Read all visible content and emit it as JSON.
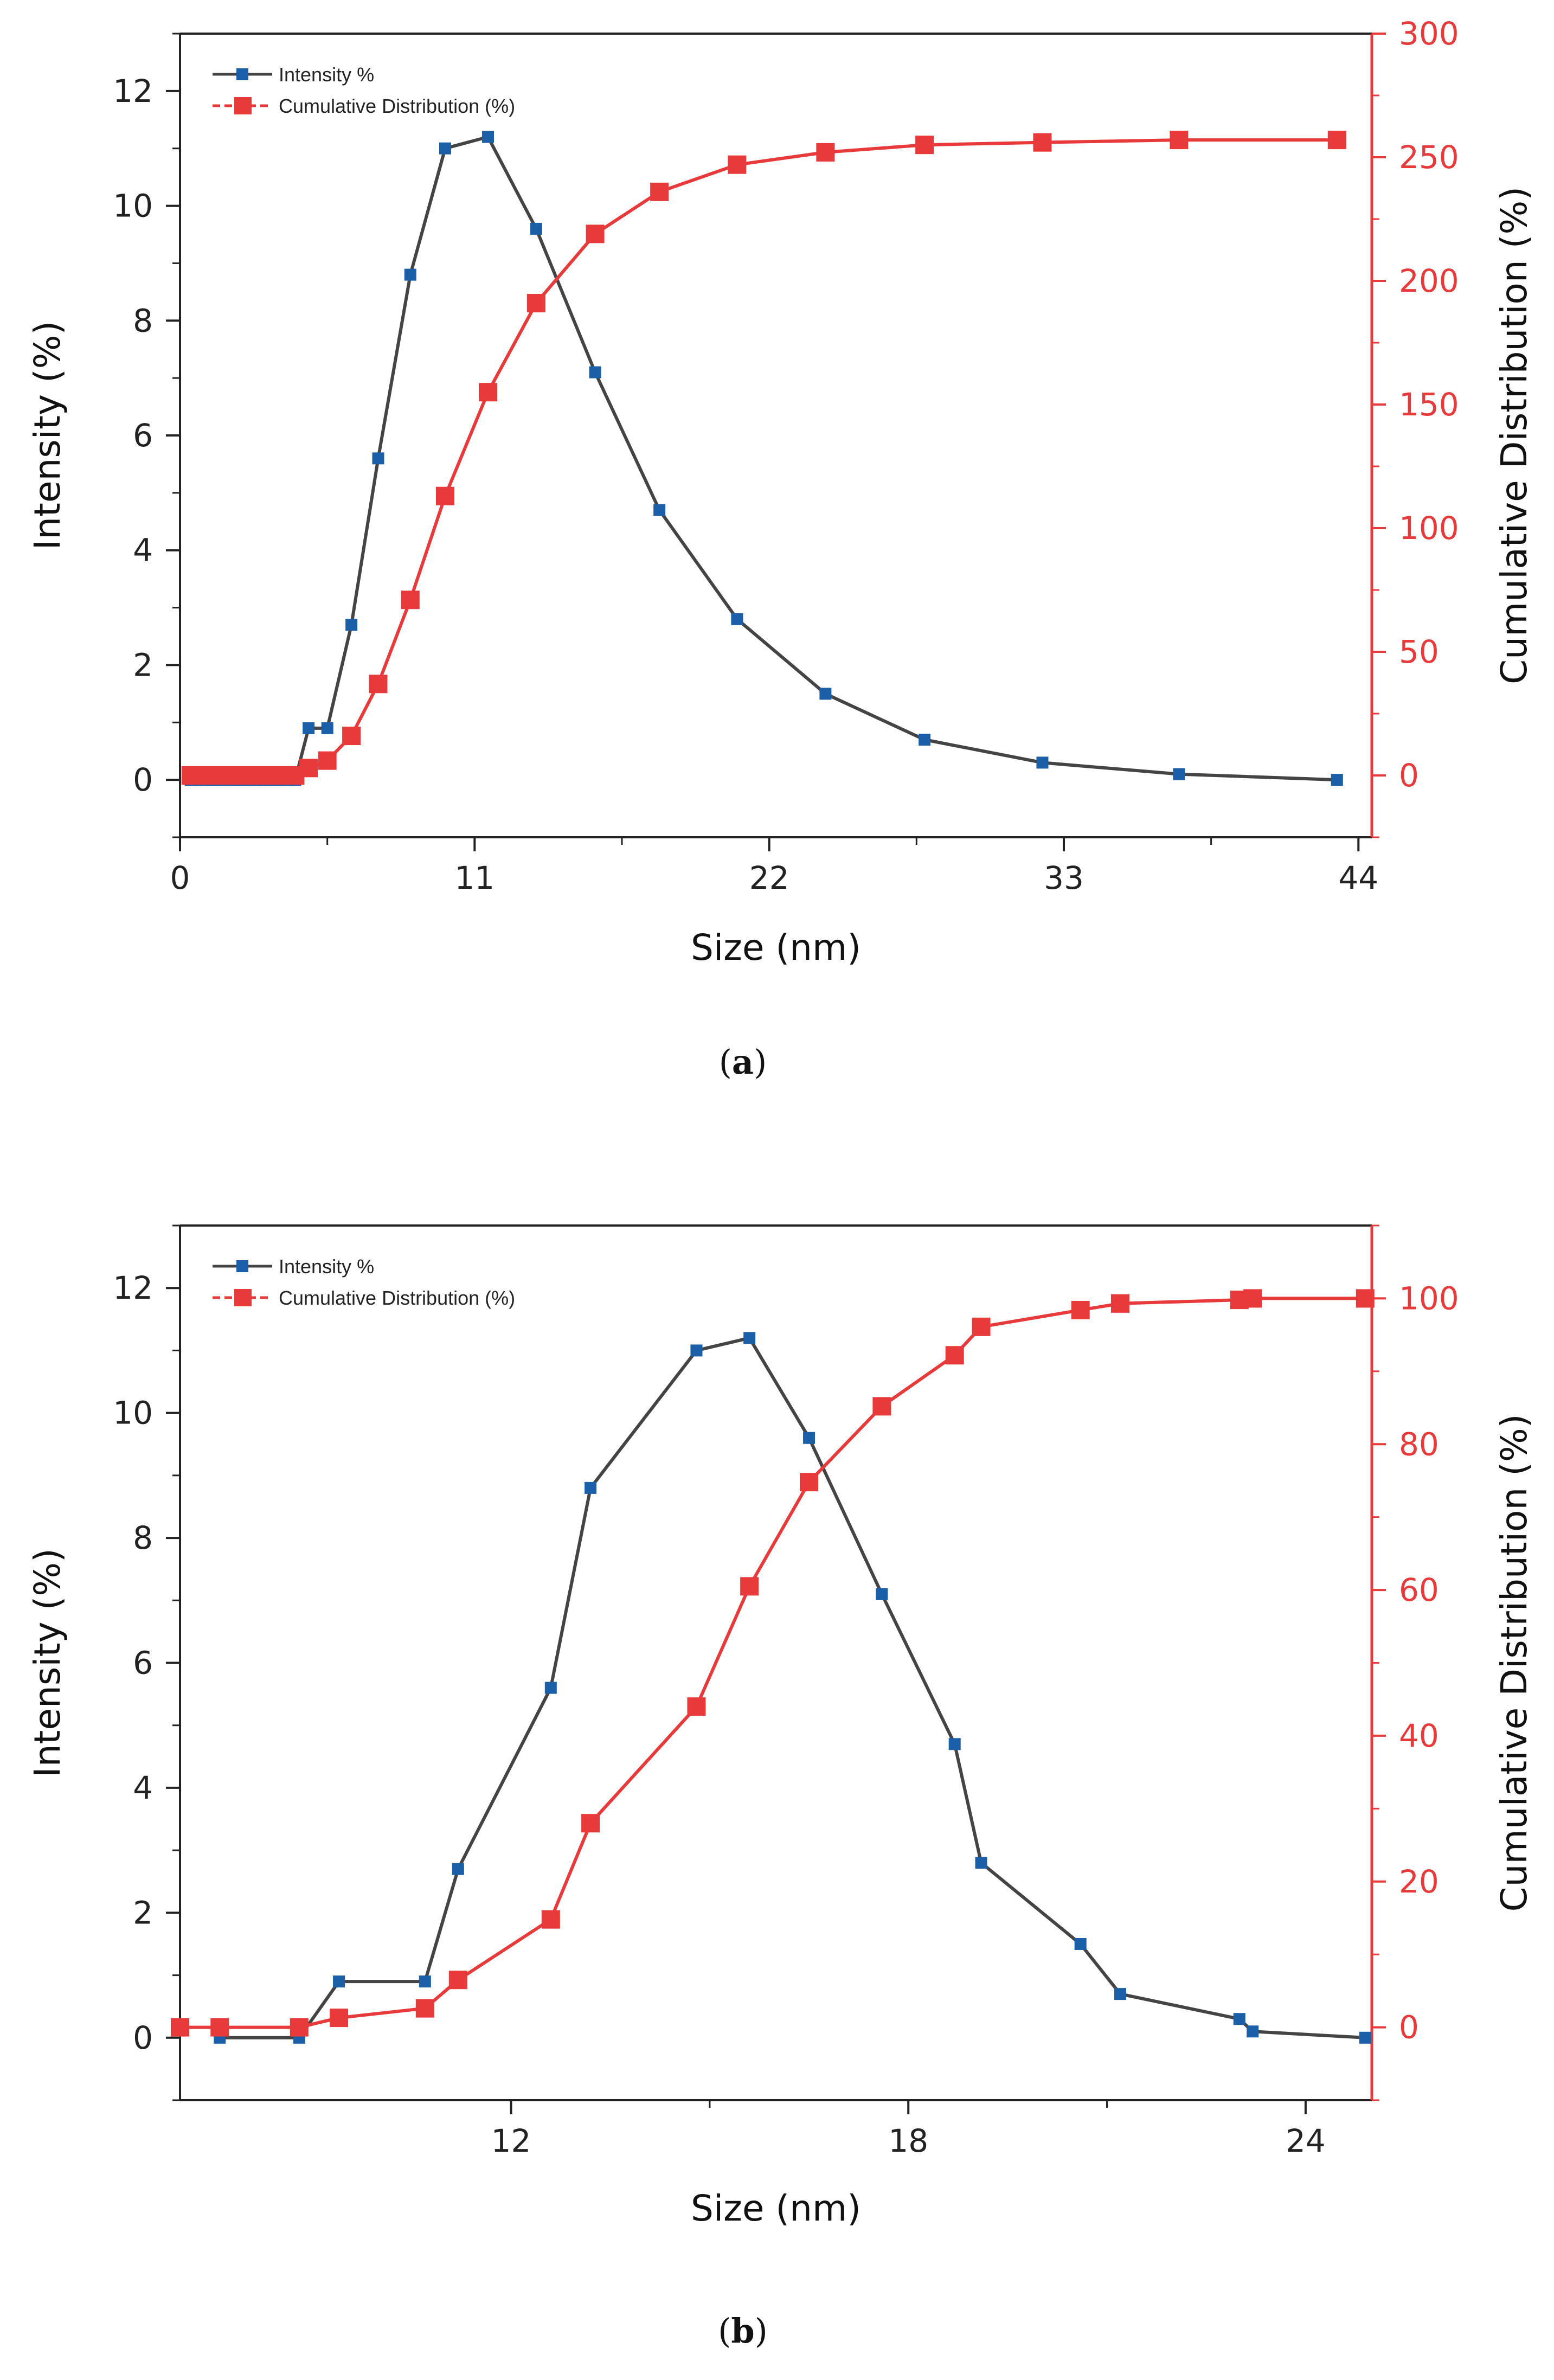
{
  "colors": {
    "intensity": "#444444",
    "intensity_marker": "#1a5fa8",
    "cumulative": "#e83a3a",
    "axis": "#222222"
  },
  "chart_data": [
    {
      "type": "line",
      "caption": "(a)",
      "caption_letter": "a",
      "xlabel": "Size (nm)",
      "ylabel": "Intensity (%)",
      "y2label": "Cumulative Distribution (%)",
      "xlim": [
        0,
        44.5
      ],
      "ylim": [
        -1,
        13
      ],
      "y2lim": [
        -25,
        300
      ],
      "xticks": [
        0,
        11,
        22,
        33,
        44
      ],
      "xtick_labels": [
        "0",
        "11",
        "22",
        "33",
        "44"
      ],
      "yticks": [
        0,
        2,
        4,
        6,
        8,
        10,
        12
      ],
      "ytick_labels": [
        "0",
        "2",
        "4",
        "6",
        "8",
        "10",
        "12"
      ],
      "y2ticks": [
        0,
        50,
        100,
        150,
        200,
        250,
        300
      ],
      "y2tick_labels": [
        "0",
        "50",
        "100",
        "150",
        "200",
        "250",
        "300"
      ],
      "legend": {
        "position": "top-left",
        "entries": [
          "Intensity %",
          "Cumulative Distribution (%)"
        ]
      },
      "series": [
        {
          "name": "Intensity %",
          "axis": "left",
          "x": [
            0.4,
            0.8,
            1.2,
            1.6,
            2.0,
            2.4,
            2.8,
            3.2,
            3.6,
            4.0,
            4.3,
            4.8,
            5.5,
            6.4,
            7.4,
            8.6,
            9.9,
            11.5,
            13.3,
            15.5,
            17.9,
            20.8,
            24.1,
            27.8,
            32.2,
            37.3,
            43.2
          ],
          "y": [
            0,
            0,
            0,
            0,
            0,
            0,
            0,
            0,
            0,
            0,
            0,
            0.9,
            0.9,
            2.7,
            5.6,
            8.8,
            11.0,
            11.2,
            9.6,
            7.1,
            4.7,
            2.8,
            1.5,
            0.7,
            0.3,
            0.1,
            0
          ]
        },
        {
          "name": "Cumulative Distribution (%)",
          "axis": "right",
          "x": [
            0.4,
            0.8,
            1.2,
            1.6,
            2.0,
            2.4,
            2.8,
            3.2,
            3.6,
            4.0,
            4.3,
            4.8,
            5.5,
            6.4,
            7.4,
            8.6,
            9.9,
            11.5,
            13.3,
            15.5,
            17.9,
            20.8,
            24.1,
            27.8,
            32.2,
            37.3,
            43.2
          ],
          "y": [
            0,
            0,
            0,
            0,
            0,
            0,
            0,
            0,
            0,
            0,
            0,
            3,
            6,
            16,
            37,
            71,
            113,
            155,
            191,
            219,
            236,
            247,
            252,
            255,
            256,
            257,
            257
          ]
        }
      ]
    },
    {
      "type": "line",
      "caption": "(b)",
      "caption_letter": "b",
      "xlabel": "Size (nm)",
      "ylabel": "Intensity (%)",
      "y2label": "Cumulative Distribution (%)",
      "xlim": [
        7,
        25
      ],
      "ylim": [
        -1,
        13
      ],
      "y2lim": [
        -10,
        110
      ],
      "xticks": [
        12,
        18,
        24
      ],
      "xtick_labels": [
        "12",
        "18",
        "24"
      ],
      "yticks": [
        0,
        2,
        4,
        6,
        8,
        10,
        12
      ],
      "ytick_labels": [
        "0",
        "2",
        "4",
        "6",
        "8",
        "10",
        "12"
      ],
      "y2ticks": [
        0,
        20,
        40,
        60,
        80,
        100
      ],
      "y2tick_labels": [
        "0",
        "20",
        "40",
        "60",
        "80",
        "100"
      ],
      "legend": {
        "position": "top-left",
        "entries": [
          "Intensity %",
          "Cumulative Distribution (%)"
        ]
      },
      "series": [
        {
          "name": "Intensity %",
          "axis": "left",
          "x": [
            7.6,
            8.8,
            9.4,
            10.7,
            11.2,
            12.6,
            13.2,
            14.8,
            15.6,
            16.5,
            17.6,
            18.7,
            19.1,
            20.6,
            21.2,
            23.0,
            23.2,
            24.9
          ],
          "y": [
            0,
            0,
            0.9,
            0.9,
            2.7,
            5.6,
            8.8,
            11.0,
            11.2,
            9.6,
            7.1,
            4.7,
            2.8,
            1.5,
            0.7,
            0.3,
            0.1,
            0
          ]
        },
        {
          "name": "Cumulative Distribution (%)",
          "axis": "right",
          "x": [
            7.0,
            7.6,
            8.8,
            9.4,
            10.7,
            11.2,
            12.6,
            13.2,
            14.8,
            15.6,
            16.5,
            17.6,
            18.7,
            19.1,
            20.6,
            21.2,
            23.0,
            23.2,
            24.9
          ],
          "y": [
            0,
            0,
            0,
            1.3,
            2.6,
            6.5,
            14.8,
            28,
            44,
            60.5,
            74.8,
            85.2,
            92.2,
            96.1,
            98.4,
            99.3,
            99.8,
            100,
            100
          ]
        }
      ]
    }
  ]
}
